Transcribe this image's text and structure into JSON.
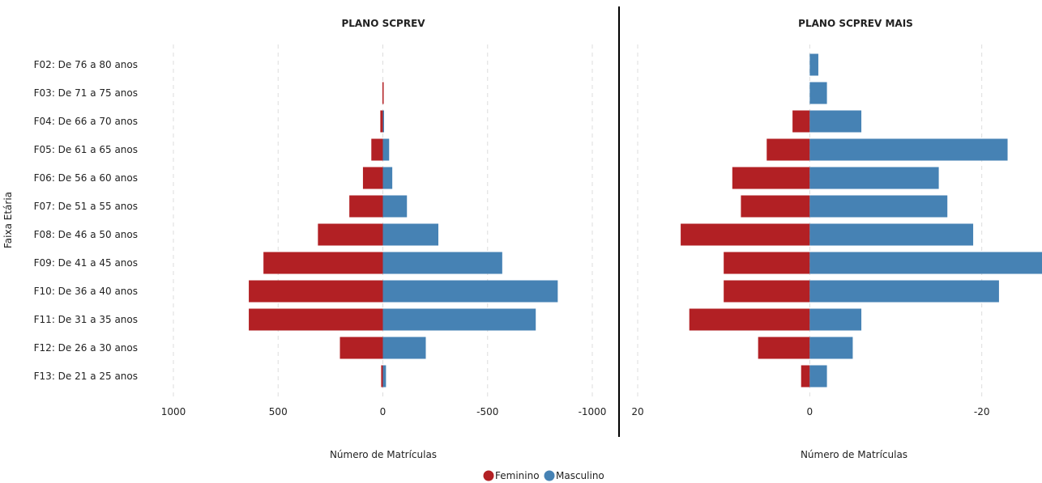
{
  "colors": {
    "feminino": "#b22024",
    "masculino": "#4682b4",
    "grid": "#dddddd",
    "divider": "#000000",
    "text": "#222222"
  },
  "y_axis_label": "Faixa Etária",
  "legend": [
    {
      "name": "Feminino",
      "color": "#b22024"
    },
    {
      "name": "Masculino",
      "color": "#4682b4"
    }
  ],
  "chart_data": [
    {
      "type": "bar",
      "orientation": "horizontal-pyramid",
      "title": "PLANO SCPREV",
      "xlabel": "Número de Matrículas",
      "ylabel": "Faixa Etária",
      "xlim": [
        1000,
        -1000
      ],
      "xticks": [
        1000,
        500,
        0,
        -500,
        -1000
      ],
      "grid": true,
      "legend_position": "bottom",
      "categories": [
        "F02: De 76 a 80 anos",
        "F03: De 71 a 75 anos",
        "F04: De 66 a 70 anos",
        "F05: De 61 a 65 anos",
        "F06: De 56 a 60 anos",
        "F07: De 51 a 55 anos",
        "F08: De 46 a 50 anos",
        "F09: De 41 a 45 anos",
        "F10: De 36 a 40 anos",
        "F11: De 31 a 35 anos",
        "F12: De 26 a 30 anos",
        "F13: De 21 a 25 anos"
      ],
      "series": [
        {
          "name": "Feminino",
          "values": [
            0,
            2,
            12,
            55,
            95,
            160,
            310,
            570,
            640,
            640,
            205,
            8
          ]
        },
        {
          "name": "Masculino",
          "values": [
            0,
            0,
            5,
            30,
            45,
            115,
            265,
            570,
            835,
            730,
            205,
            15
          ]
        }
      ]
    },
    {
      "type": "bar",
      "orientation": "horizontal-pyramid",
      "title": "PLANO SCPREV MAIS",
      "xlabel": "Número de Matrículas",
      "xlim": [
        20,
        -27
      ],
      "xticks": [
        20,
        0,
        -20
      ],
      "grid": true,
      "legend_position": "bottom",
      "categories": [
        "F02: De 76 a 80 anos",
        "F03: De 71 a 75 anos",
        "F04: De 66 a 70 anos",
        "F05: De 61 a 65 anos",
        "F06: De 56 a 60 anos",
        "F07: De 51 a 55 anos",
        "F08: De 46 a 50 anos",
        "F09: De 41 a 45 anos",
        "F10: De 36 a 40 anos",
        "F11: De 31 a 35 anos",
        "F12: De 26 a 30 anos",
        "F13: De 21 a 25 anos"
      ],
      "series": [
        {
          "name": "Feminino",
          "values": [
            0,
            0,
            2,
            5,
            9,
            8,
            15,
            10,
            10,
            14,
            6,
            1
          ]
        },
        {
          "name": "Masculino",
          "values": [
            1,
            2,
            6,
            23,
            15,
            16,
            19,
            27,
            22,
            6,
            5,
            2
          ]
        }
      ]
    }
  ]
}
